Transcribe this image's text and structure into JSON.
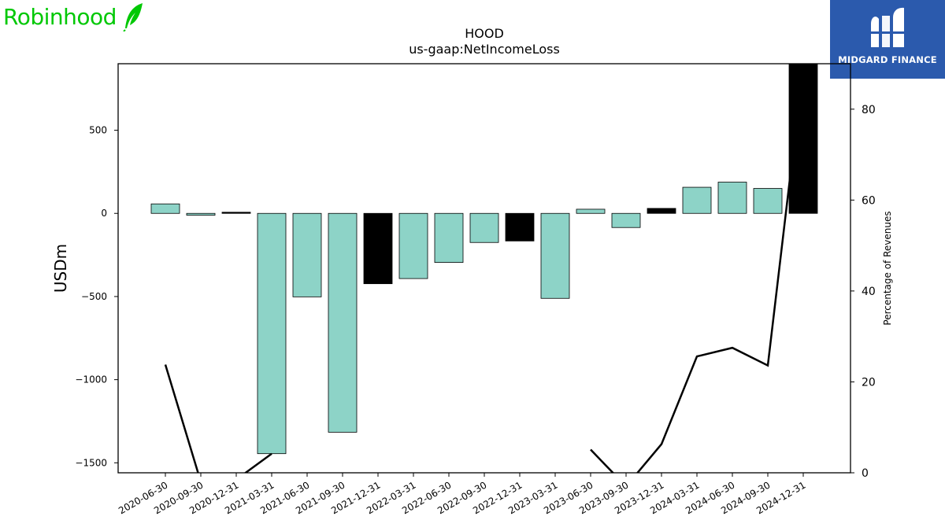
{
  "brand": {
    "name": "Robinhood",
    "color": "#00c805",
    "icon": "feather-icon"
  },
  "watermark": {
    "name": "MIDGARD FINANCE",
    "background": "#2b5aad",
    "icon": "midgard-logo-icon"
  },
  "chart_data": {
    "type": "bar",
    "title": "HOOD",
    "subtitle": "us-gaap:NetIncomeLoss",
    "ylabel": "USDm",
    "y2label": "Percentage of Revenues",
    "ylim": [
      -1560,
      900
    ],
    "y2lim": [
      0,
      90
    ],
    "yticks": [
      500,
      0,
      -500,
      -1000,
      -1500
    ],
    "y2ticks": [
      80,
      60,
      40,
      20,
      0
    ],
    "categories": [
      "2020-06-30",
      "2020-09-30",
      "2020-12-31",
      "2021-03-31",
      "2021-06-30",
      "2021-09-30",
      "2021-12-31",
      "2022-03-31",
      "2022-06-30",
      "2022-09-30",
      "2022-12-31",
      "2023-03-31",
      "2023-06-30",
      "2023-09-30",
      "2023-12-31",
      "2024-03-31",
      "2024-06-30",
      "2024-09-30",
      "2024-12-31"
    ],
    "values": [
      57,
      -11,
      7,
      -1445,
      -502,
      -1316,
      -423,
      -392,
      -295,
      -175,
      -166,
      -511,
      25,
      -85,
      30,
      157,
      188,
      150,
      916
    ],
    "bar_colors": [
      "#8dd3c7",
      "#8dd3c7",
      "#000000",
      "#8dd3c7",
      "#8dd3c7",
      "#8dd3c7",
      "#000000",
      "#8dd3c7",
      "#8dd3c7",
      "#8dd3c7",
      "#000000",
      "#8dd3c7",
      "#8dd3c7",
      "#8dd3c7",
      "#000000",
      "#8dd3c7",
      "#8dd3c7",
      "#8dd3c7",
      "#000000"
    ],
    "pct_of_revenue": [
      23.8,
      -2,
      -1.5,
      4.2,
      null,
      null,
      null,
      null,
      null,
      null,
      null,
      null,
      5.1,
      -3,
      6.3,
      25.6,
      27.5,
      23.6,
      89.5
    ],
    "grid": false
  }
}
